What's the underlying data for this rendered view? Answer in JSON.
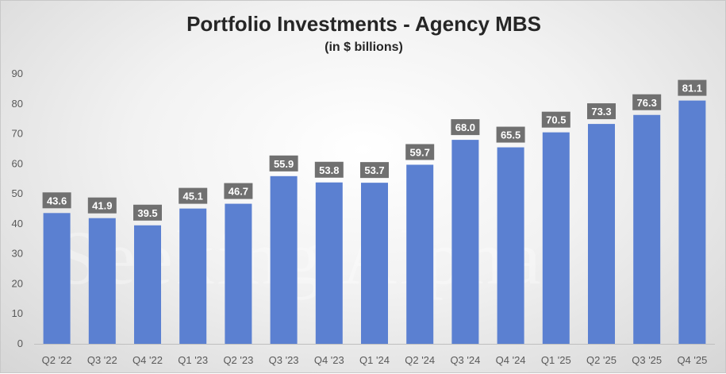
{
  "chart_data": {
    "type": "bar",
    "title": "Portfolio Investments - Agency MBS",
    "subtitle": "(in $ billions)",
    "categories": [
      "Q2 '22",
      "Q3 '22",
      "Q4 '22",
      "Q1 '23",
      "Q2 '23",
      "Q3 '23",
      "Q4 '23",
      "Q1 '24",
      "Q2 '24",
      "Q3 '24",
      "Q4 '24",
      "Q1 '25",
      "Q2 '25",
      "Q3 '25",
      "Q4 '25"
    ],
    "values": [
      43.6,
      41.9,
      39.5,
      45.1,
      46.7,
      55.9,
      53.8,
      53.7,
      59.7,
      68.0,
      65.5,
      70.5,
      73.3,
      76.3,
      81.1
    ],
    "ylim": [
      0,
      90
    ],
    "yticks": [
      0,
      10,
      20,
      30,
      40,
      50,
      60,
      70,
      80,
      90
    ],
    "xlabel": "",
    "ylabel": "",
    "grid": false,
    "bar_color": "#5b80d1",
    "label_box_color": "#707070"
  },
  "watermark": "Seeking Alpha"
}
